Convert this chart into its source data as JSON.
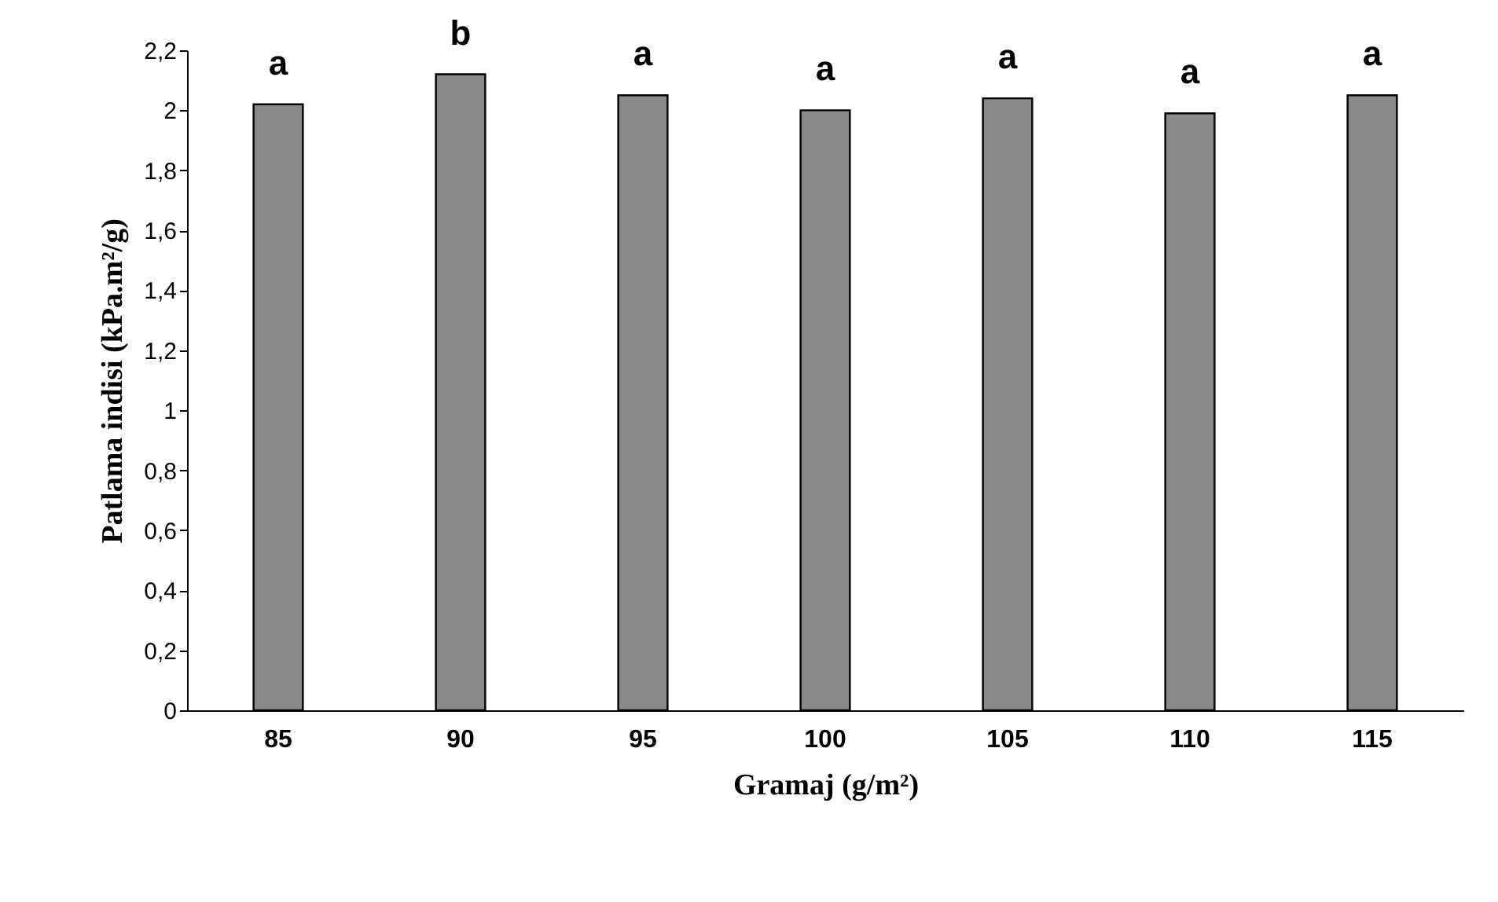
{
  "chart_data": {
    "type": "bar",
    "xlabel": "Gramaj (g/m²)",
    "ylabel": "Patlama indisi (kPa.m²/g)",
    "categories": [
      "85",
      "90",
      "95",
      "100",
      "105",
      "110",
      "115"
    ],
    "values": [
      2.02,
      2.12,
      2.05,
      2.0,
      2.04,
      1.99,
      2.05
    ],
    "color": "#8a8a8a",
    "ylim": [
      0,
      2.2
    ],
    "yticks": [
      0,
      {
        "value": 0.2,
        "label": "0,2"
      },
      {
        "value": 0.4,
        "label": "0,4"
      },
      {
        "value": 0.6,
        "label": "0,6"
      },
      {
        "value": 0.8,
        "label": "0,8"
      },
      1,
      {
        "value": 1.2,
        "label": "1,2"
      },
      {
        "value": 1.4,
        "label": "1,4"
      },
      {
        "value": 1.6,
        "label": "1,6"
      },
      {
        "value": 1.8,
        "label": "1,8"
      },
      2,
      {
        "value": 2.2,
        "label": "2,2"
      }
    ],
    "grid": false,
    "annotations": [
      {
        "text": "a",
        "x": "85",
        "y": 2.02
      },
      {
        "text": "b",
        "x": "90",
        "y": 2.12
      },
      {
        "text": "a",
        "x": "95",
        "y": 2.05
      },
      {
        "text": "a",
        "x": "100",
        "y": 2.0
      },
      {
        "text": "a",
        "x": "105",
        "y": 2.04
      },
      {
        "text": "a",
        "x": "110",
        "y": 1.99
      },
      {
        "text": "a",
        "x": "115",
        "y": 2.05
      }
    ]
  }
}
